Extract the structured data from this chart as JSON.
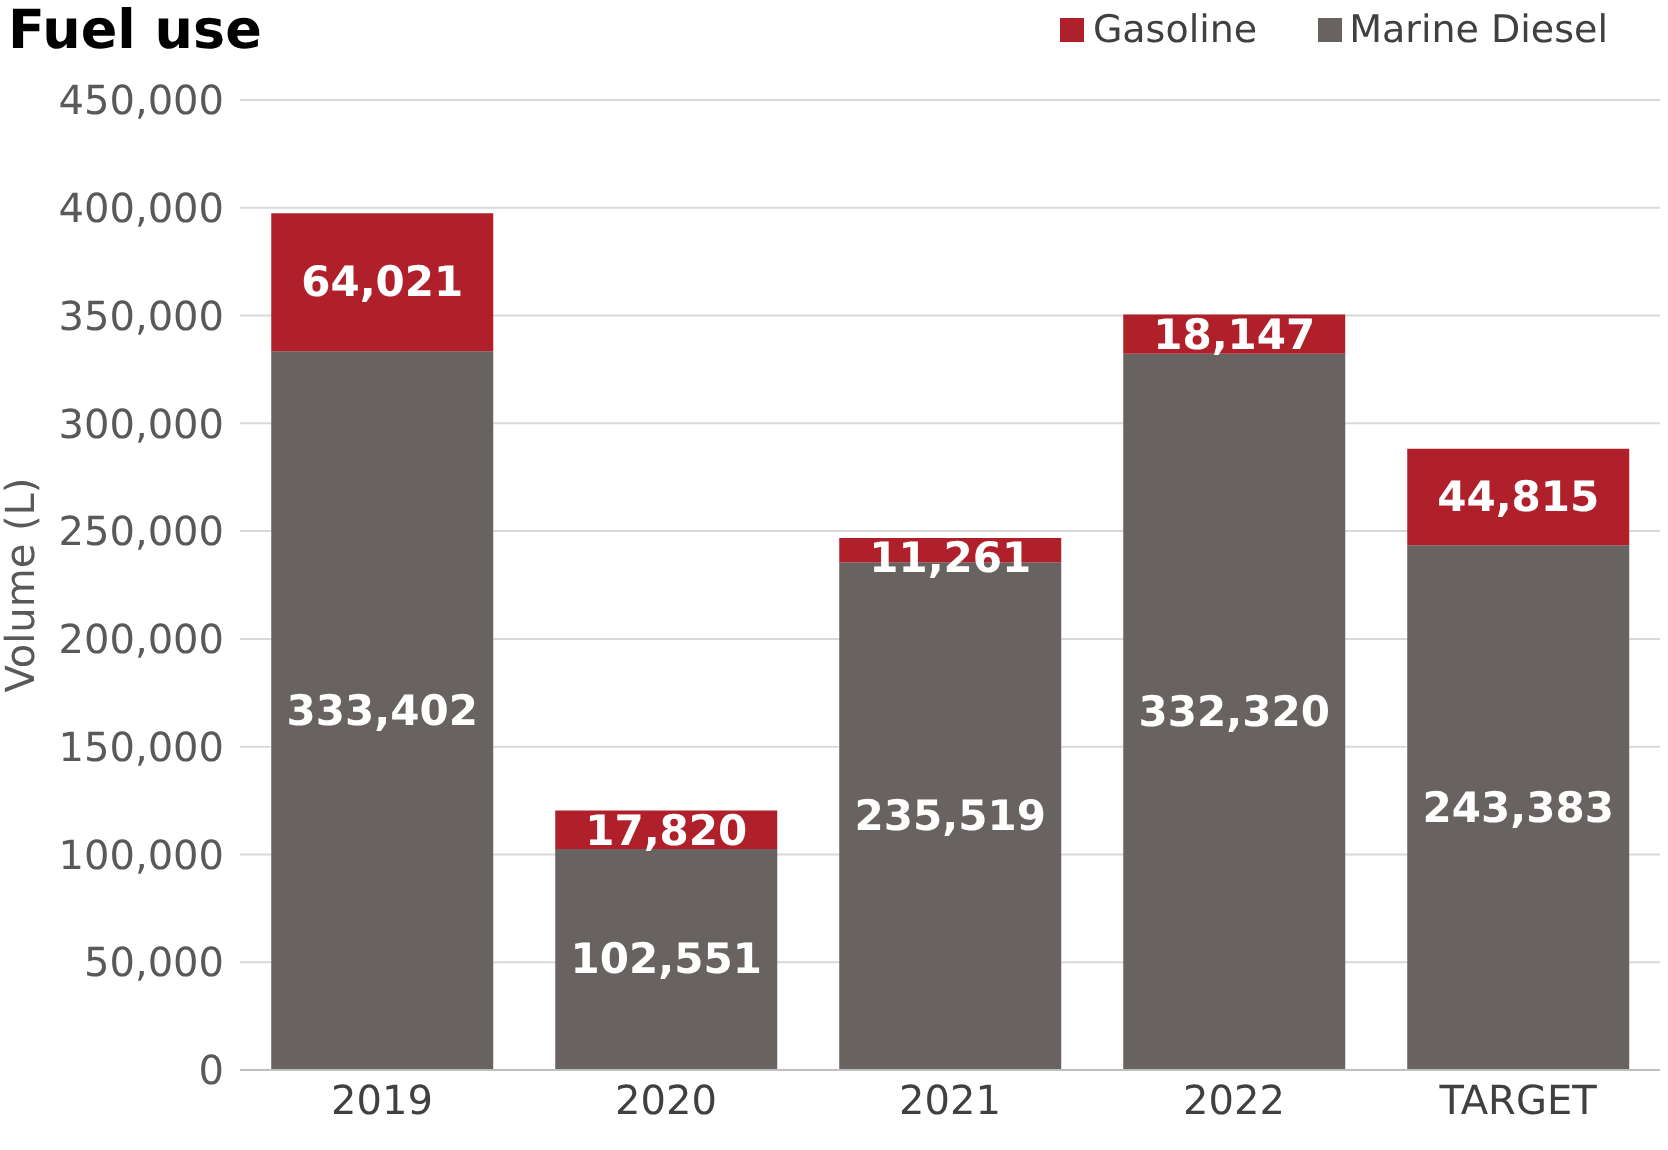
{
  "chart_data": {
    "type": "bar",
    "title": "Fuel use",
    "ylabel": "Volume (L)",
    "categories": [
      "2019",
      "2020",
      "2021",
      "2022",
      "TARGET"
    ],
    "stacked": true,
    "series": [
      {
        "name": "Marine Diesel",
        "color": "#686261",
        "values": [
          333402,
          102551,
          235519,
          332320,
          243383
        ],
        "value_labels": [
          "333,402",
          "102,551",
          "235,519",
          "332,320",
          "243,383"
        ]
      },
      {
        "name": "Gasoline",
        "color": "#b0202a",
        "values": [
          64021,
          17820,
          11261,
          18147,
          44815
        ],
        "value_labels": [
          "64,021",
          "17,820",
          "11,261",
          "18,147",
          "44,815"
        ]
      }
    ],
    "ylim": [
      0,
      450000
    ],
    "yticks": [
      0,
      {
        "value": 50000,
        "label": "50,000"
      },
      {
        "value": 100000,
        "label": "100,000"
      },
      {
        "value": 150000,
        "label": "150,000"
      },
      {
        "value": 200000,
        "label": "200,000"
      },
      {
        "value": 250000,
        "label": "250,000"
      },
      {
        "value": 300000,
        "label": "300,000"
      },
      {
        "value": 350000,
        "label": "350,000"
      },
      {
        "value": 400000,
        "label": "400,000"
      },
      {
        "value": 450000,
        "label": "450,000"
      }
    ],
    "grid": "y",
    "legend": "top right"
  }
}
